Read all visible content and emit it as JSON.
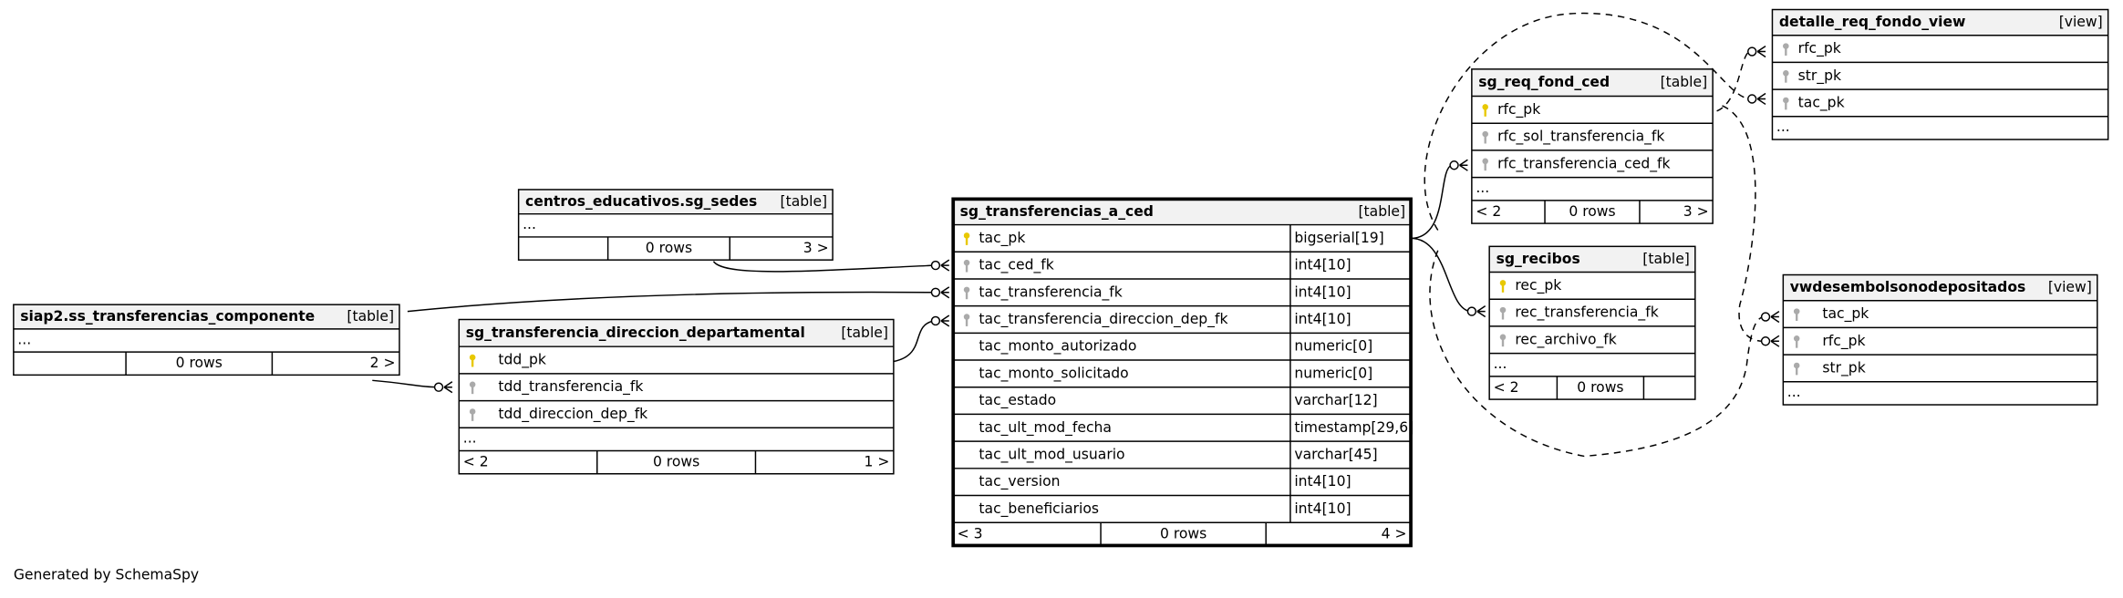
{
  "tables": [
    {
      "name": "centros_educativos.sg_sedes",
      "kind": "[table]",
      "columns": [],
      "more": "...",
      "footer": [
        null,
        "0 rows",
        "3 >"
      ]
    },
    {
      "name": "siap2.ss_transferencias_componente",
      "kind": "[table]",
      "columns": [],
      "more": "...",
      "footer": [
        null,
        "0 rows",
        "2 >"
      ]
    },
    {
      "name": "sg_transferencia_direccion_departamental",
      "kind": "[table]",
      "columns": [
        {
          "name": "tdd_pk",
          "key": "pk"
        },
        {
          "name": "tdd_transferencia_fk",
          "key": "fk"
        },
        {
          "name": "tdd_direccion_dep_fk",
          "key": "fk"
        }
      ],
      "more": "...",
      "footer": [
        "< 2",
        "0 rows",
        "1 >"
      ]
    },
    {
      "name": "sg_transferencias_a_ced",
      "kind": "[table]",
      "columns": [
        {
          "name": "tac_pk",
          "key": "pk",
          "type": "bigserial[19]"
        },
        {
          "name": "tac_ced_fk",
          "key": "fk",
          "type": "int4[10]"
        },
        {
          "name": "tac_transferencia_fk",
          "key": "fk",
          "type": "int4[10]"
        },
        {
          "name": "tac_transferencia_direccion_dep_fk",
          "key": "fk",
          "type": "int4[10]"
        },
        {
          "name": "tac_monto_autorizado",
          "type": "numeric[0]"
        },
        {
          "name": "tac_monto_solicitado",
          "type": "numeric[0]"
        },
        {
          "name": "tac_estado",
          "type": "varchar[12]"
        },
        {
          "name": "tac_ult_mod_fecha",
          "type": "timestamp[29,6]"
        },
        {
          "name": "tac_ult_mod_usuario",
          "type": "varchar[45]"
        },
        {
          "name": "tac_version",
          "type": "int4[10]"
        },
        {
          "name": "tac_beneficiarios",
          "type": "int4[10]"
        }
      ],
      "footer": [
        "< 3",
        "0 rows",
        "4 >"
      ]
    },
    {
      "name": "sg_req_fond_ced",
      "kind": "[table]",
      "columns": [
        {
          "name": "rfc_pk",
          "key": "pk"
        },
        {
          "name": "rfc_sol_transferencia_fk",
          "key": "fk"
        },
        {
          "name": "rfc_transferencia_ced_fk",
          "key": "fk"
        }
      ],
      "more": "...",
      "footer": [
        "< 2",
        "0 rows",
        "3 >"
      ]
    },
    {
      "name": "sg_recibos",
      "kind": "[table]",
      "columns": [
        {
          "name": "rec_pk",
          "key": "pk"
        },
        {
          "name": "rec_transferencia_fk",
          "key": "fk"
        },
        {
          "name": "rec_archivo_fk",
          "key": "fk"
        }
      ],
      "more": "...",
      "footer": [
        "< 2",
        "0 rows",
        null
      ]
    },
    {
      "name": "detalle_req_fondo_view",
      "kind": "[view]",
      "columns": [
        {
          "name": "rfc_pk",
          "key": "fk"
        },
        {
          "name": "str_pk",
          "key": "fk"
        },
        {
          "name": "tac_pk",
          "key": "fk"
        }
      ],
      "more": "..."
    },
    {
      "name": "vwdesembolsonodepositados",
      "kind": "[view]",
      "columns": [
        {
          "name": "tac_pk",
          "key": "fk"
        },
        {
          "name": "rfc_pk",
          "key": "fk"
        },
        {
          "name": "str_pk",
          "key": "fk"
        }
      ],
      "more": "..."
    }
  ],
  "generator": "Generated by SchemaSpy"
}
